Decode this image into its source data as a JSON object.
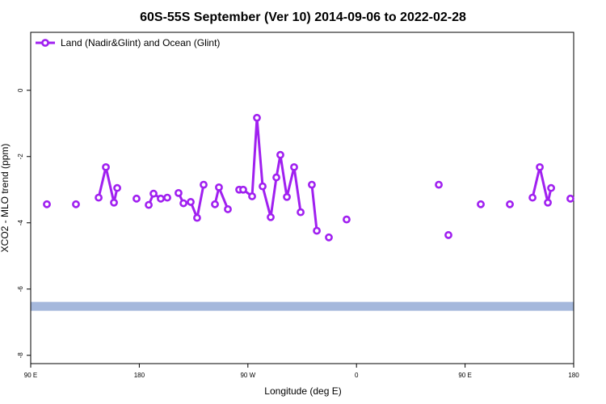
{
  "chart_data": {
    "type": "line",
    "title": "60S-55S September (Ver 10)   2014-09-06 to 2022-02-28",
    "x_label": "Longitude (deg E)",
    "y_label": "XCO2 - MLO trend (ppm)",
    "xlim": [
      90,
      540
    ],
    "xticks": [
      {
        "value": 90,
        "label": "90 E"
      },
      {
        "value": 180,
        "label": "180"
      },
      {
        "value": 270,
        "label": "90 W"
      },
      {
        "value": 360,
        "label": "0"
      },
      {
        "value": 450,
        "label": "90 E"
      },
      {
        "value": 540,
        "label": "180"
      }
    ],
    "ylim": [
      -8.25,
      1.75
    ],
    "yticks": [
      0,
      -2,
      -4,
      -6,
      -8
    ],
    "legend": "top-left",
    "reference_band": {
      "value": -6.52,
      "color": "#a5b8dc"
    },
    "series": [
      {
        "name": "Land (Nadir&Glint) and Ocean (Glint)",
        "color": "#a020f0",
        "x": [
          103.4,
          null,
          127.5,
          null,
          146.3,
          152.3,
          159.0,
          161.7,
          null,
          177.7,
          null,
          187.8,
          191.8,
          197.8,
          203.2,
          null,
          212.5,
          216.6,
          222.6,
          227.9,
          233.3,
          null,
          242.7,
          246.0,
          253.4,
          null,
          262.8,
          266.1,
          273.5,
          277.5,
          282.2,
          288.9,
          293.6,
          296.9,
          302.3,
          308.3,
          313.7,
          null,
          323.0,
          327.1,
          null,
          337.1,
          null,
          351.8,
          null,
          428.2,
          null,
          436.2,
          null,
          463.0,
          null,
          487.1,
          null,
          505.9,
          511.9,
          518.6,
          521.3,
          null,
          537.3
        ],
        "values": [
          -3.44,
          null,
          -3.44,
          null,
          -3.24,
          -2.32,
          -3.39,
          -2.95,
          null,
          -3.27,
          null,
          -3.46,
          -3.12,
          -3.27,
          -3.24,
          null,
          -3.1,
          -3.41,
          -3.37,
          -3.85,
          -2.85,
          null,
          -3.44,
          -2.93,
          -3.59,
          null,
          -3.0,
          -3.0,
          -3.2,
          -0.83,
          -2.9,
          -3.83,
          -2.63,
          -1.95,
          -3.22,
          -2.32,
          -3.68,
          null,
          -2.85,
          -4.24,
          null,
          -4.44,
          null,
          -3.9,
          null,
          -2.85,
          null,
          -4.37,
          null,
          -3.44,
          null,
          -3.44,
          null,
          -3.24,
          -2.32,
          -3.39,
          -2.95,
          null,
          -3.27
        ]
      }
    ]
  }
}
